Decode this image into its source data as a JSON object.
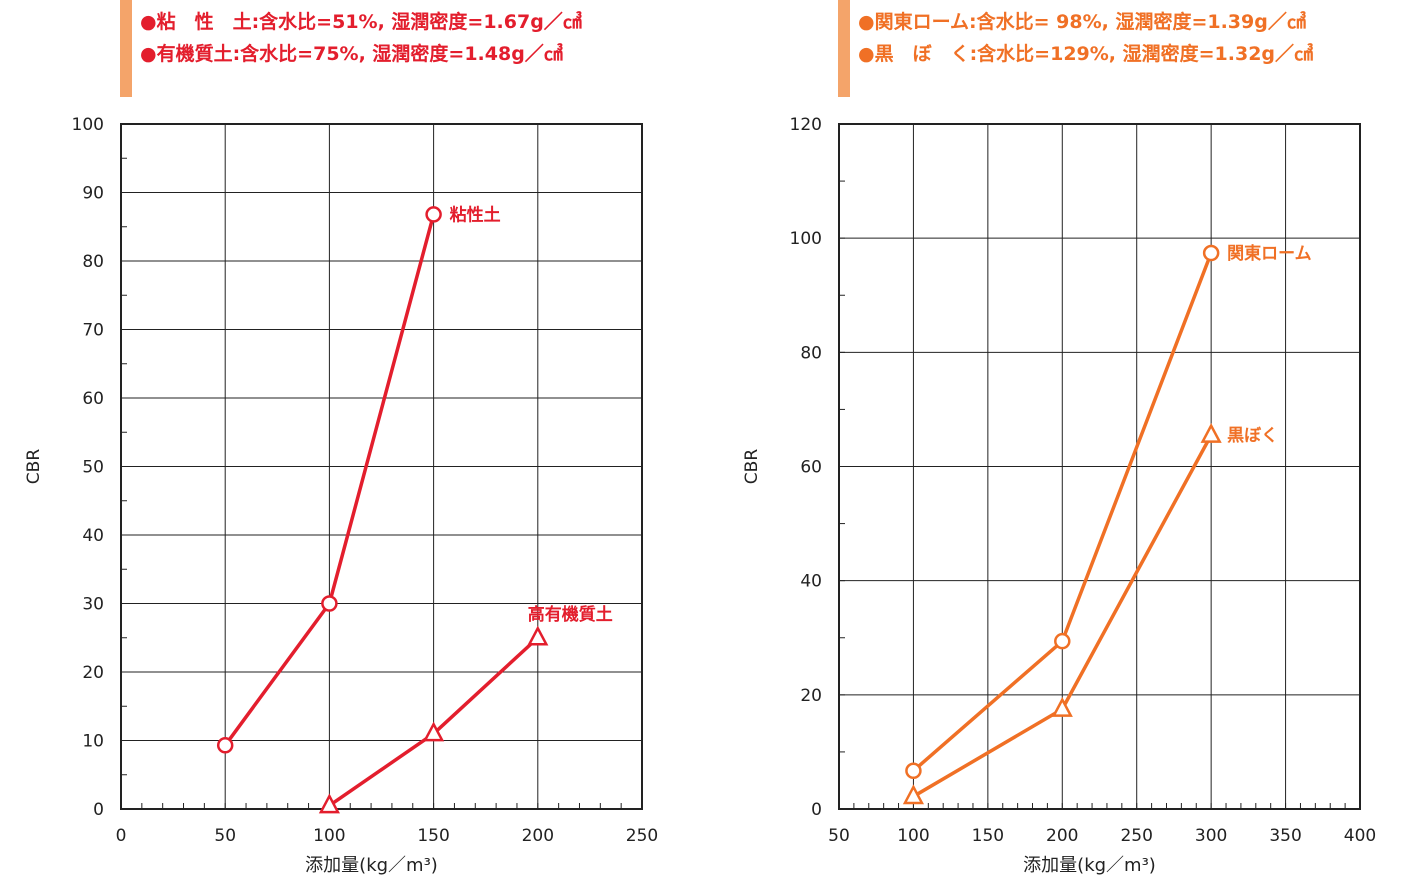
{
  "charts": [
    {
      "type": "line",
      "color": "#e31e2d",
      "legend": [
        "●粘　性　土:含水比=51%, 湿潤密度=1.67g／㎤",
        "●有機質土:含水比=75%, 湿潤密度=1.48g／㎤"
      ],
      "xlabel": "添加量(kg／m³)",
      "ylabel": "CBR",
      "xlim": [
        0,
        250
      ],
      "ylim": [
        0,
        100
      ],
      "x_ticks": [
        0,
        50,
        100,
        150,
        200,
        250
      ],
      "y_ticks": [
        0,
        10,
        20,
        30,
        40,
        50,
        60,
        70,
        80,
        90,
        100
      ],
      "grid": true,
      "series": [
        {
          "name": "粘性土",
          "marker": "circle",
          "x": [
            50,
            100,
            150
          ],
          "values": [
            9.3,
            30,
            86.8
          ]
        },
        {
          "name": "高有機質土",
          "marker": "triangle",
          "x": [
            100,
            150,
            200
          ],
          "values": [
            0.5,
            11,
            25
          ]
        }
      ]
    },
    {
      "type": "line",
      "color": "#f07025",
      "legend": [
        "●関東ローム:含水比= 98%, 湿潤密度=1.39g／㎤",
        "●黒　ぼ　く:含水比=129%, 湿潤密度=1.32g／㎤"
      ],
      "xlabel": "添加量(kg／m³)",
      "ylabel": "CBR",
      "xlim": [
        50,
        400
      ],
      "ylim": [
        0,
        120
      ],
      "x_ticks": [
        50,
        100,
        150,
        200,
        250,
        300,
        350,
        400
      ],
      "y_ticks": [
        0,
        20,
        40,
        60,
        80,
        100,
        120
      ],
      "grid": true,
      "series": [
        {
          "name": "関東ローム",
          "marker": "circle",
          "x": [
            100,
            200,
            300
          ],
          "values": [
            6.7,
            29.4,
            97.4
          ]
        },
        {
          "name": "黒ぼく",
          "marker": "triangle",
          "x": [
            100,
            200,
            300
          ],
          "values": [
            2.2,
            17.5,
            65.5
          ]
        }
      ]
    }
  ],
  "chart_data": [
    {
      "type": "line",
      "xlabel": "添加量(kg／m³)",
      "ylabel": "CBR",
      "xlim": [
        0,
        250
      ],
      "ylim": [
        0,
        100
      ],
      "grid": true,
      "series": [
        {
          "name": "粘性土",
          "x": [
            50,
            100,
            150
          ],
          "values": [
            9.3,
            30,
            86.8
          ]
        },
        {
          "name": "高有機質土",
          "x": [
            100,
            150,
            200
          ],
          "values": [
            0.5,
            11,
            25
          ]
        }
      ]
    },
    {
      "type": "line",
      "xlabel": "添加量(kg／m³)",
      "ylabel": "CBR",
      "xlim": [
        50,
        400
      ],
      "ylim": [
        0,
        120
      ],
      "grid": true,
      "series": [
        {
          "name": "関東ローム",
          "x": [
            100,
            200,
            300
          ],
          "values": [
            6.7,
            29.4,
            97.4
          ]
        },
        {
          "name": "黒ぼく",
          "x": [
            100,
            200,
            300
          ],
          "values": [
            2.2,
            17.5,
            65.5
          ]
        }
      ]
    }
  ]
}
